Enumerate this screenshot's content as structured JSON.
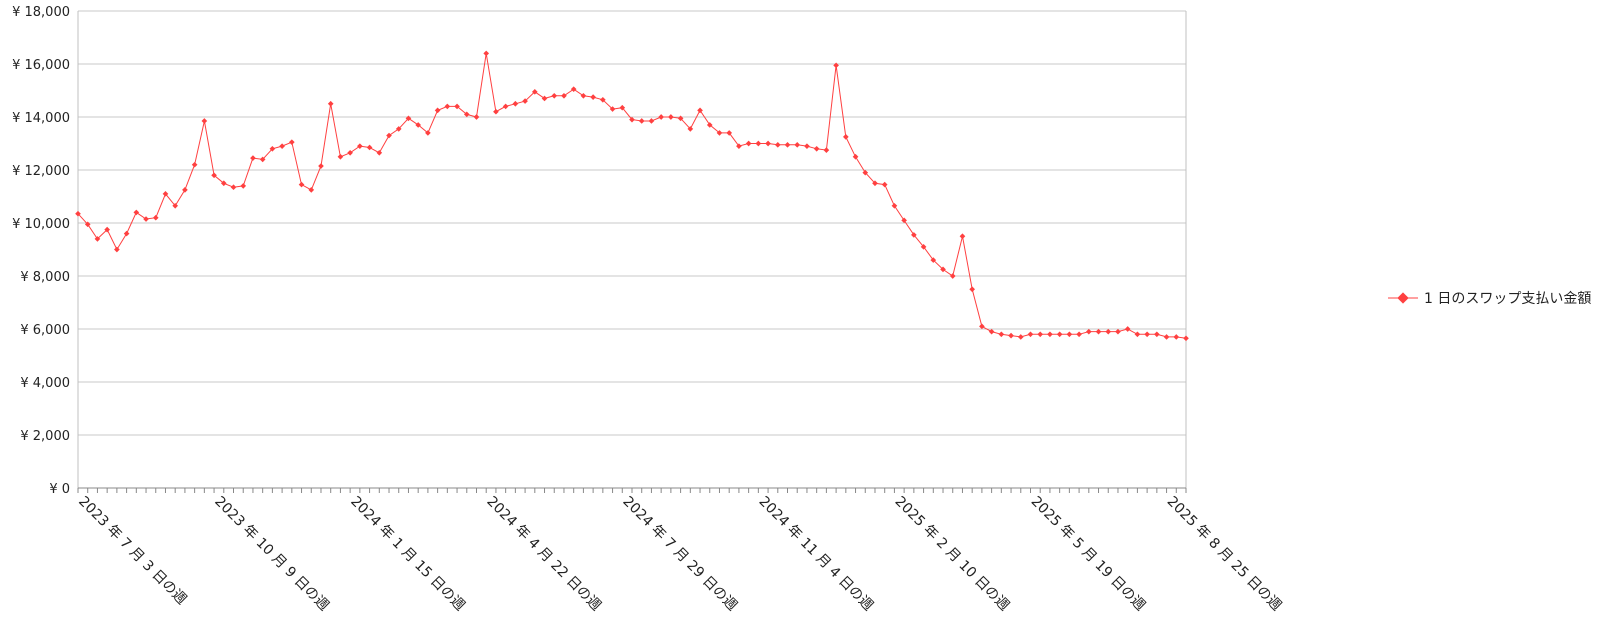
{
  "chart_data": {
    "type": "line",
    "title": "",
    "xlabel": "",
    "ylabel": "",
    "ylim": [
      0,
      18000
    ],
    "y_ticks": [
      "¥ 0",
      "¥ 2,000",
      "¥ 4,000",
      "¥ 6,000",
      "¥ 8,000",
      "¥ 10,000",
      "¥ 12,000",
      "¥ 14,000",
      "¥ 16,000",
      "¥ 18,000"
    ],
    "x_tick_labels": [
      "2023 年 7 月 3 日の週",
      "2023 年 10 月 9 日の週",
      "2024 年 1 月 15 日の週",
      "2024 年 4 月 22 日の週",
      "2024 年 7 月 29 日の週",
      "2024 年 11 月 4 日の週",
      "2025 年 2 月 10 日の週",
      "2025 年 5 月 19 日の週",
      "2025 年 8 月 25 日の週"
    ],
    "x_tick_week_index": [
      0,
      14,
      28,
      42,
      56,
      70,
      84,
      98,
      112
    ],
    "x_start": "2023-07-03",
    "x_interval": "weekly",
    "grid": "horizontal",
    "legend_position": "right",
    "series": [
      {
        "name": "1 日のスワップ支払い金額",
        "color": "#ff4040",
        "values": [
          10350,
          9950,
          9400,
          9750,
          9000,
          9600,
          10400,
          10150,
          10200,
          11100,
          10650,
          11250,
          12200,
          13850,
          11800,
          11500,
          11350,
          11400,
          12450,
          12400,
          12800,
          12900,
          13050,
          11450,
          11250,
          12150,
          14500,
          12500,
          12650,
          12900,
          12850,
          12650,
          13300,
          13550,
          13950,
          13700,
          13400,
          14250,
          14400,
          14400,
          14100,
          14000,
          16400,
          14200,
          14400,
          14500,
          14600,
          14950,
          14700,
          14800,
          14800,
          15050,
          14800,
          14750,
          14650,
          14300,
          14350,
          13900,
          13850,
          13850,
          14000,
          14000,
          13950,
          13550,
          14250,
          13700,
          13400,
          13400,
          12900,
          13000,
          13000,
          13000,
          12950,
          12950,
          12950,
          12900,
          12800,
          12750,
          15950,
          13250,
          12500,
          11900,
          11500,
          11450,
          10650,
          10100,
          9550,
          9100,
          8600,
          8250,
          8000,
          9500,
          7500,
          6100,
          5900,
          5800,
          5750,
          5700,
          5800,
          5800,
          5800,
          5800,
          5800,
          5800,
          5900,
          5900,
          5900,
          5900,
          6000,
          5800,
          5800,
          5800,
          5700,
          5700,
          5650
        ]
      }
    ]
  }
}
